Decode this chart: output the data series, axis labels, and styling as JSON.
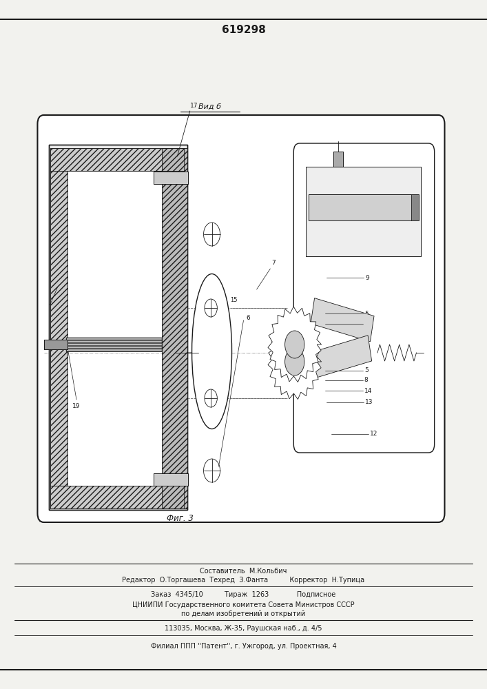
{
  "patent_number": "619298",
  "view_label": "Вид б",
  "fig_label": "Фиг. 3",
  "bg_color": "#f2f2ee",
  "line_color": "#1a1a1a",
  "footer_lines": [
    "Составитель  М.Кольбич",
    "Редактор  О.Торгашева  Техред  З.Фанта          Корректор  Н.Тупица",
    "Заказ  4345/10          Тираж  1263             Подписное",
    "ЦНИИПИ Государственного комитета Совета Министров СССР",
    "по делам изобретений и открытий",
    "113035, Москва, Ж-35, Раушская наб., д. 4/5",
    "Филиал ППП ''Патент'', г. Ужгород, ул. Проектная, 4"
  ]
}
